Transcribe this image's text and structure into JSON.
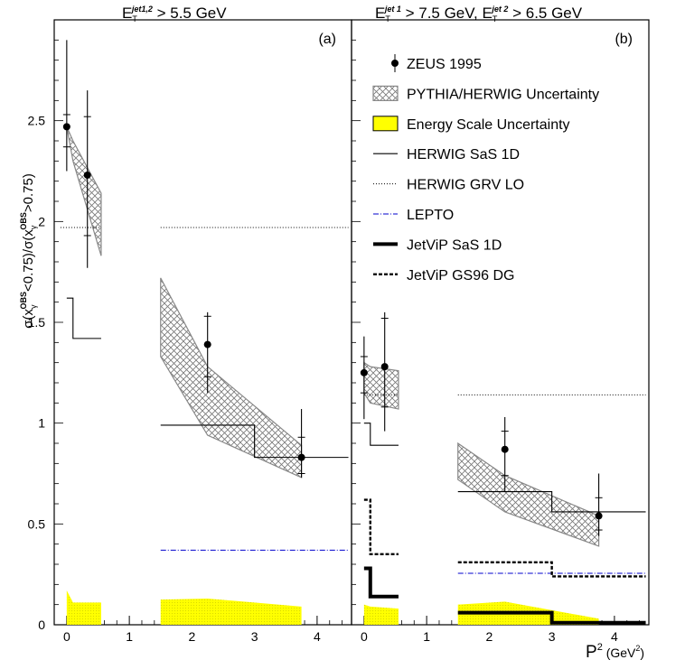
{
  "y_axis_title": {
    "sigma1": "σ(x",
    "sub1": "γ",
    "sup1": "OBS",
    "lt": "<0.75)/σ(x",
    "sub2": "γ",
    "sup2": "OBS",
    "gt": ">0.75)"
  },
  "x_axis_title": {
    "base": "P",
    "exp": "2",
    "unit_open": " (GeV",
    "unit_exp": "2",
    "unit_close": ")"
  },
  "colors": {
    "energy_scale_fill": "#ffff00",
    "uncertainty_band_stroke": "#888888",
    "lepto_line": "#0000cc",
    "ink": "#000000"
  },
  "chart_data": [
    {
      "type": "line",
      "panel_label": "(a)",
      "header": {
        "sym": "E",
        "sub": "T",
        "sup": "jet1,2",
        "rest": " > 5.5 GeV"
      },
      "xlim": [
        -0.2,
        4.55
      ],
      "ylim": [
        0,
        3.0
      ],
      "x_ticks": [
        "0",
        "1",
        "2",
        "3",
        "4"
      ],
      "y_ticks": [
        {
          "v": 0,
          "label": "0"
        },
        {
          "v": 0.5,
          "label": "0.5"
        },
        {
          "v": 1,
          "label": "1"
        },
        {
          "v": 1.5,
          "label": "1.5"
        },
        {
          "v": 2,
          "label": "2"
        },
        {
          "v": 2.5,
          "label": "2.5"
        }
      ],
      "zeus_1995": [
        {
          "x": 0.0,
          "y": 2.47,
          "stat_lo": 2.37,
          "stat_hi": 2.53,
          "tot_lo": 2.25,
          "tot_hi": 2.9
        },
        {
          "x": 0.33,
          "y": 2.23,
          "stat_lo": 1.93,
          "stat_hi": 2.52,
          "tot_lo": 1.77,
          "tot_hi": 2.65
        },
        {
          "x": 2.25,
          "y": 1.39,
          "stat_lo": 1.23,
          "stat_hi": 1.53,
          "tot_lo": 1.15,
          "tot_hi": 1.55
        },
        {
          "x": 3.75,
          "y": 0.83,
          "stat_lo": 0.75,
          "stat_hi": 0.93,
          "tot_lo": 0.73,
          "tot_hi": 1.07
        }
      ],
      "pythia_herwig_band": [
        {
          "x": [
            0.0,
            0.1,
            0.55
          ],
          "lo": [
            2.47,
            2.3,
            1.83
          ],
          "hi": [
            2.47,
            2.4,
            2.14
          ]
        },
        {
          "x": [
            1.5,
            2.25,
            3.75
          ],
          "lo": [
            1.33,
            0.94,
            0.73
          ],
          "hi": [
            1.72,
            1.28,
            0.89
          ]
        }
      ],
      "energy_scale_band": [
        {
          "x": [
            0.0,
            0.1,
            0.55
          ],
          "hi": [
            0.17,
            0.11,
            0.11
          ]
        },
        {
          "x": [
            1.5,
            2.25,
            3.75
          ],
          "hi": [
            0.125,
            0.13,
            0.09
          ]
        }
      ],
      "herwig_sas1d": [
        {
          "edges": [
            0.0,
            0.1,
            0.55
          ],
          "values": [
            1.62,
            1.42
          ]
        },
        {
          "edges": [
            1.5,
            3.0,
            4.5
          ],
          "values": [
            0.99,
            0.83
          ]
        }
      ],
      "herwig_grvlo": [
        {
          "edges": [
            -0.1,
            0.55
          ],
          "values": [
            1.97
          ]
        },
        {
          "edges": [
            1.5,
            4.5
          ],
          "values": [
            1.97
          ]
        }
      ],
      "lepto": [
        {
          "edges": [
            1.5,
            4.5
          ],
          "values": [
            0.37
          ]
        }
      ],
      "jetvip_sas1d": [],
      "jetvip_gs96dg": []
    },
    {
      "type": "line",
      "panel_label": "(b)",
      "header": {
        "sym": "E",
        "sub": "T",
        "sup": "jet 1",
        "mid": " > 7.5 GeV, E",
        "sub2": "T",
        "sup2": "jet 2",
        "rest": " > 6.5 GeV"
      },
      "xlim": [
        -0.2,
        4.55
      ],
      "ylim": [
        0,
        3.0
      ],
      "x_ticks": [
        "0",
        "1",
        "2",
        "3",
        "4"
      ],
      "x_axis_label": "P²(GeV²)",
      "zeus_1995": [
        {
          "x": 0.0,
          "y": 1.25,
          "stat_lo": 1.15,
          "stat_hi": 1.33,
          "tot_lo": 1.02,
          "tot_hi": 1.43
        },
        {
          "x": 0.33,
          "y": 1.28,
          "stat_lo": 1.08,
          "stat_hi": 1.52,
          "tot_lo": 0.96,
          "tot_hi": 1.55
        },
        {
          "x": 2.25,
          "y": 0.87,
          "stat_lo": 0.74,
          "stat_hi": 0.96,
          "tot_lo": 0.66,
          "tot_hi": 1.03
        },
        {
          "x": 3.75,
          "y": 0.54,
          "stat_lo": 0.47,
          "stat_hi": 0.63,
          "tot_lo": 0.44,
          "tot_hi": 0.75
        }
      ],
      "pythia_herwig_band": [
        {
          "x": [
            0.0,
            0.1,
            0.55
          ],
          "lo": [
            1.15,
            1.1,
            1.07
          ],
          "hi": [
            1.3,
            1.28,
            1.26
          ]
        },
        {
          "x": [
            1.5,
            2.25,
            3.75
          ],
          "lo": [
            0.72,
            0.56,
            0.39
          ],
          "hi": [
            0.9,
            0.74,
            0.54
          ]
        }
      ],
      "energy_scale_band": [
        {
          "x": [
            0.0,
            0.1,
            0.55
          ],
          "hi": [
            0.1,
            0.09,
            0.08
          ]
        },
        {
          "x": [
            1.5,
            2.25,
            3.75
          ],
          "hi": [
            0.1,
            0.115,
            0.03
          ]
        }
      ],
      "herwig_sas1d": [
        {
          "edges": [
            0.0,
            0.1,
            0.55
          ],
          "values": [
            1.0,
            0.89
          ]
        },
        {
          "edges": [
            1.5,
            3.0,
            4.5
          ],
          "values": [
            0.66,
            0.56
          ]
        }
      ],
      "herwig_grvlo": [
        {
          "edges": [
            0.0,
            0.55
          ],
          "values": [
            1.14
          ]
        },
        {
          "edges": [
            1.5,
            4.5
          ],
          "values": [
            1.14
          ]
        }
      ],
      "lepto": [
        {
          "edges": [
            1.5,
            4.5
          ],
          "values": [
            0.255
          ]
        }
      ],
      "jetvip_sas1d": [
        {
          "edges": [
            0.0,
            0.1,
            0.55
          ],
          "values": [
            0.28,
            0.14
          ]
        },
        {
          "edges": [
            1.5,
            3.0,
            4.5
          ],
          "values": [
            0.06,
            0.01
          ]
        }
      ],
      "jetvip_gs96dg": [
        {
          "edges": [
            0.0,
            0.1,
            0.55
          ],
          "values": [
            0.62,
            0.35
          ]
        },
        {
          "edges": [
            1.5,
            3.0,
            4.5
          ],
          "values": [
            0.31,
            0.24
          ]
        }
      ]
    }
  ],
  "legend": [
    {
      "key": "zeus",
      "label": "ZEUS 1995"
    },
    {
      "key": "band",
      "label": "PYTHIA/HERWIG Uncertainty"
    },
    {
      "key": "escale",
      "label": "Energy Scale Uncertainty"
    },
    {
      "key": "herwig_sas1d",
      "label": "HERWIG SaS 1D"
    },
    {
      "key": "herwig_grvlo",
      "label": "HERWIG GRV LO"
    },
    {
      "key": "lepto",
      "label": "LEPTO"
    },
    {
      "key": "jetvip_sas1d",
      "label": "JetViP SaS 1D"
    },
    {
      "key": "jetvip_gs96dg",
      "label": "JetViP GS96 DG"
    }
  ]
}
